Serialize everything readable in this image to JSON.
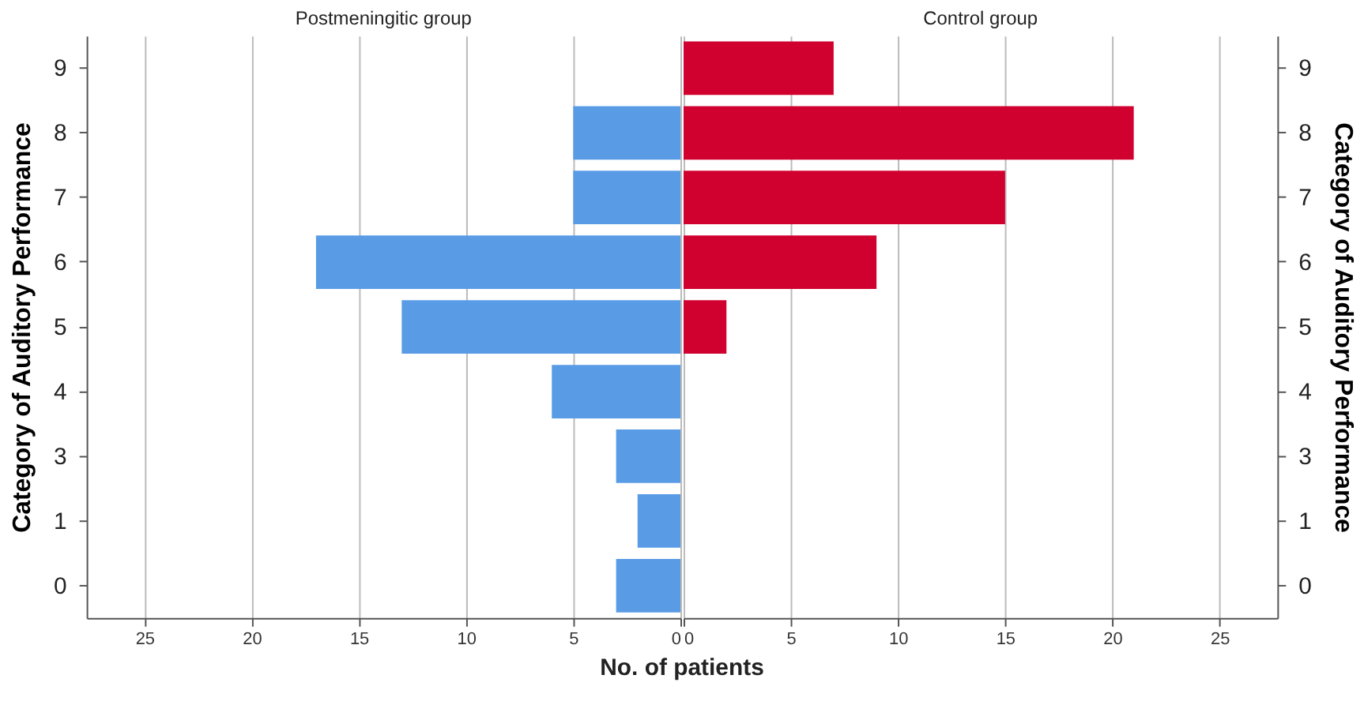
{
  "chart_data": [
    {
      "type": "bar",
      "orientation": "horizontal",
      "title": "Postmeningitic group",
      "ylabel": "Category of Auditory Performance",
      "xlabel": "No. of patients",
      "categories": [
        "9",
        "8",
        "7",
        "6",
        "5",
        "4",
        "3",
        "1",
        "0"
      ],
      "values": [
        null,
        5,
        5,
        17,
        13,
        6,
        3,
        2,
        3
      ],
      "color": "#5a9be6",
      "xlim": [
        27.7,
        0
      ],
      "xticks": [
        25,
        20,
        15,
        10,
        5,
        0
      ],
      "grid": "x"
    },
    {
      "type": "bar",
      "orientation": "horizontal",
      "title": "Control group",
      "ylabel": "Category of Auditory Performance",
      "categories": [
        "9",
        "8",
        "7",
        "6",
        "5",
        "4",
        "3",
        "1",
        "0"
      ],
      "values": [
        7,
        21,
        15,
        9,
        2,
        null,
        null,
        null,
        null
      ],
      "color": "#d0002f",
      "xlim": [
        0,
        27.7
      ],
      "xticks": [
        0,
        5,
        10,
        15,
        20,
        25
      ],
      "grid": "x"
    }
  ]
}
